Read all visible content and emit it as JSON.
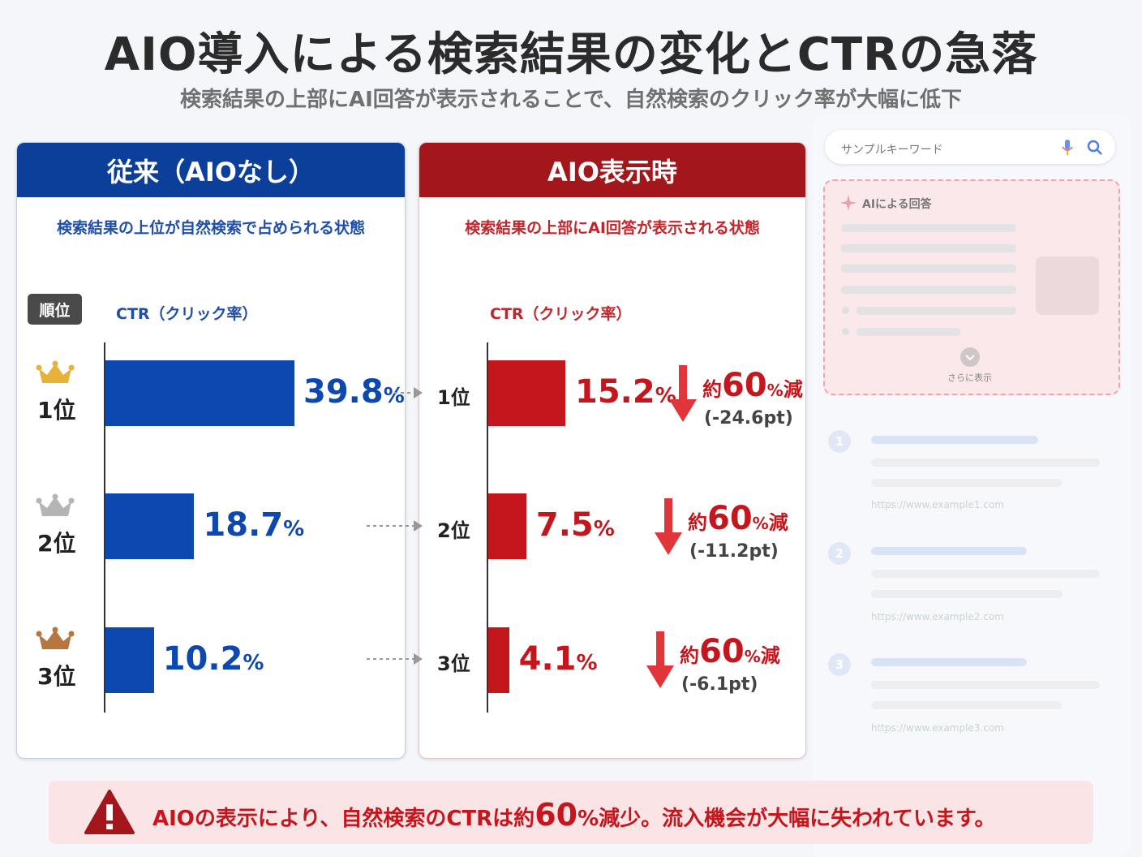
{
  "title": "AIO導入による検索結果の変化とCTRの急落",
  "subtitle": "検索結果の上部にAI回答が表示されることで、自然検索のクリック率が大幅に低下",
  "left_panel": {
    "header": "従来（AIOなし）",
    "desc": "検索結果の上位が自然検索で占められる状態",
    "rank_badge": "順位",
    "ctr_label": "CTR（クリック率）"
  },
  "right_panel": {
    "header": "AIO表示時",
    "desc": "検索結果の上部にAI回答が表示される状態",
    "ctr_label": "CTR（クリック率）"
  },
  "pct_symbol": "%",
  "reduce": {
    "prefix": "約",
    "num": "60",
    "pct": "%",
    "suffix": "減"
  },
  "chart_data": {
    "type": "bar",
    "orientation": "horizontal",
    "categories": [
      "1位",
      "2位",
      "3位"
    ],
    "series": [
      {
        "name": "従来（AIOなし）",
        "values": [
          39.8,
          18.7,
          10.2
        ],
        "color": "#0d47b0"
      },
      {
        "name": "AIO表示時",
        "values": [
          15.2,
          7.5,
          4.1
        ],
        "color": "#c4161c"
      }
    ],
    "value_labels_left": [
      "39.8",
      "18.7",
      "10.2"
    ],
    "value_labels_right": [
      "15.2",
      "7.5",
      "4.1"
    ],
    "deltas": [
      "(-24.6pt)",
      "(-11.2pt)",
      "(-6.1pt)"
    ],
    "unit": "%"
  },
  "crown_colors": [
    "#e6b23a",
    "#b5b5b5",
    "#b8763f"
  ],
  "serp": {
    "search_text": "サンプルキーワード",
    "ai_title": "AIによる回答",
    "more": "さらに表示",
    "results": [
      {
        "num": "1",
        "url": "https://www.example1.com"
      },
      {
        "num": "2",
        "url": "https://www.example2.com"
      },
      {
        "num": "3",
        "url": "https://www.example3.com"
      }
    ]
  },
  "banner": {
    "pre": "AIOの表示により、自然検索のCTRは約",
    "num": "60",
    "post": "%減少。流入機会が大幅に失われています。"
  }
}
